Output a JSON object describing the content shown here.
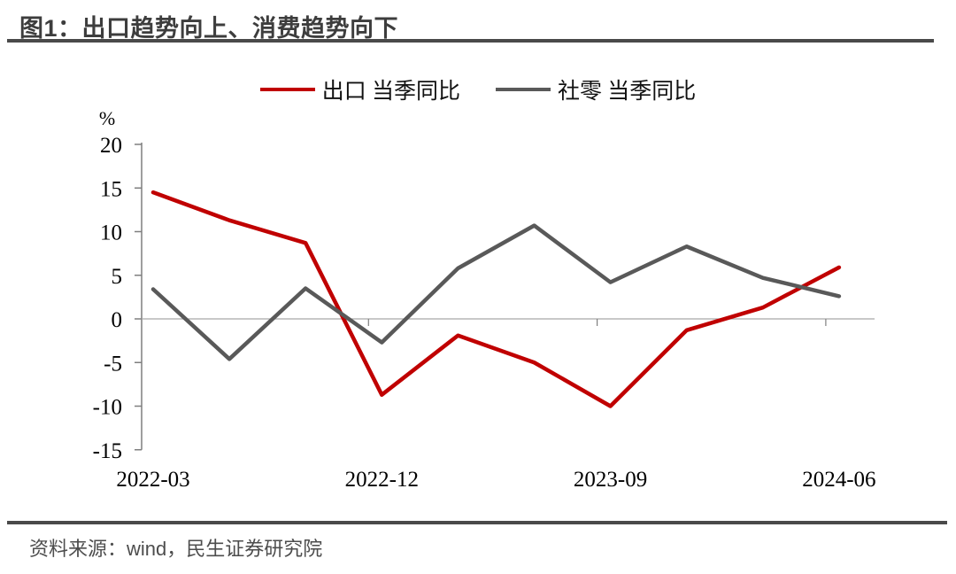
{
  "title": "图1：出口趋势向上、消费趋势向下",
  "footer": {
    "source_label": "资料来源：wind，民生证券研究院"
  },
  "chart_data": {
    "type": "line",
    "title": "图1：出口趋势向上、消费趋势向下",
    "unit_label": "%",
    "categories": [
      "2022-03",
      "2022-06",
      "2022-09",
      "2022-12",
      "2023-03",
      "2023-06",
      "2023-09",
      "2023-12",
      "2024-03",
      "2024-06"
    ],
    "x_tick_labels": [
      "2022-03",
      "2022-12",
      "2023-09",
      "2024-06"
    ],
    "x_tick_indices": [
      0,
      3,
      6,
      9
    ],
    "series": [
      {
        "name": "出口 当季同比",
        "color": "#c00000",
        "values": [
          14.5,
          11.3,
          8.7,
          -8.7,
          -1.9,
          -5.0,
          -10.0,
          -1.3,
          1.3,
          5.9
        ]
      },
      {
        "name": "社零 当季同比",
        "color": "#595959",
        "values": [
          3.4,
          -4.6,
          3.5,
          -2.7,
          5.8,
          10.7,
          4.2,
          8.3,
          4.7,
          2.6
        ]
      }
    ],
    "ylim": [
      -15,
      20
    ],
    "y_ticks": [
      20,
      15,
      10,
      5,
      0,
      -5,
      -10,
      -15
    ],
    "legend_position": "top",
    "grid": false,
    "axis_color": "#7f7f7f",
    "zero_line_color": "#a8a8a8",
    "tick_label_color": "#000000"
  }
}
